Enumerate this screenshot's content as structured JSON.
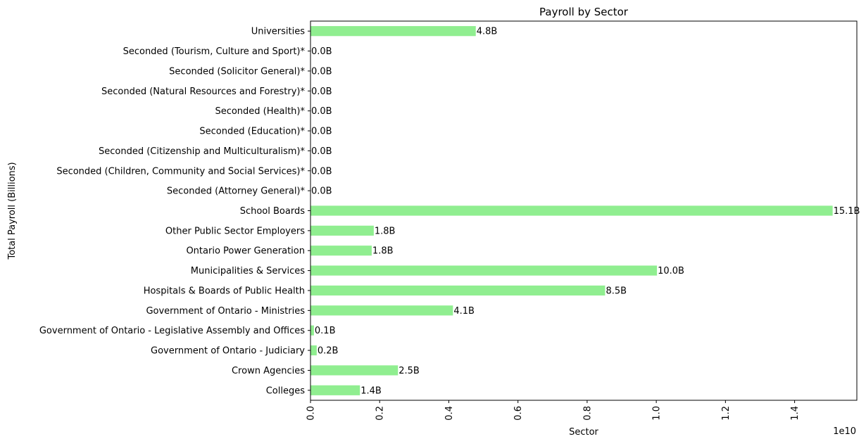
{
  "chart_data": {
    "type": "bar",
    "orientation": "horizontal",
    "title": "Payroll by Sector",
    "xlabel": "Sector",
    "ylabel": "Total Payroll (Billions)",
    "x_offset_label": "1e10",
    "xlim": [
      0,
      15800000000.0
    ],
    "x_ticks": [
      0,
      2000000000.0,
      4000000000.0,
      6000000000.0,
      8000000000.0,
      10000000000.0,
      12000000000.0,
      14000000000.0
    ],
    "x_tick_labels": [
      "0.0",
      "0.2",
      "0.4",
      "0.6",
      "0.8",
      "1.0",
      "1.2",
      "1.4"
    ],
    "grid": false,
    "legend": "none",
    "bar_color": "#90ee90",
    "categories": [
      "Colleges",
      "Crown Agencies",
      "Government of Ontario - Judiciary",
      "Government of Ontario - Legislative Assembly and Offices",
      "Government of Ontario - Ministries",
      "Hospitals & Boards of Public Health",
      "Municipalities & Services",
      "Ontario Power Generation",
      "Other Public Sector Employers",
      "School Boards",
      "Seconded (Attorney General)*",
      "Seconded (Children, Community and Social Services)*",
      "Seconded (Citizenship and Multiculturalism)*",
      "Seconded (Education)*",
      "Seconded (Health)*",
      "Seconded (Natural Resources and Forestry)*",
      "Seconded (Solicitor General)*",
      "Seconded (Tourism, Culture and Sport)*",
      "Universities"
    ],
    "values": [
      1430000000.0,
      2530000000.0,
      180000000.0,
      100000000.0,
      4120000000.0,
      8520000000.0,
      10020000000.0,
      1770000000.0,
      1830000000.0,
      15100000000.0,
      0,
      0,
      0,
      0,
      0,
      0,
      0,
      0,
      4780000000.0
    ],
    "data_labels": [
      "1.4B",
      "2.5B",
      "0.2B",
      "0.1B",
      "4.1B",
      "8.5B",
      "10.0B",
      "1.8B",
      "1.8B",
      "15.1B",
      "0.0B",
      "0.0B",
      "0.0B",
      "0.0B",
      "0.0B",
      "0.0B",
      "0.0B",
      "0.0B",
      "4.8B"
    ]
  }
}
